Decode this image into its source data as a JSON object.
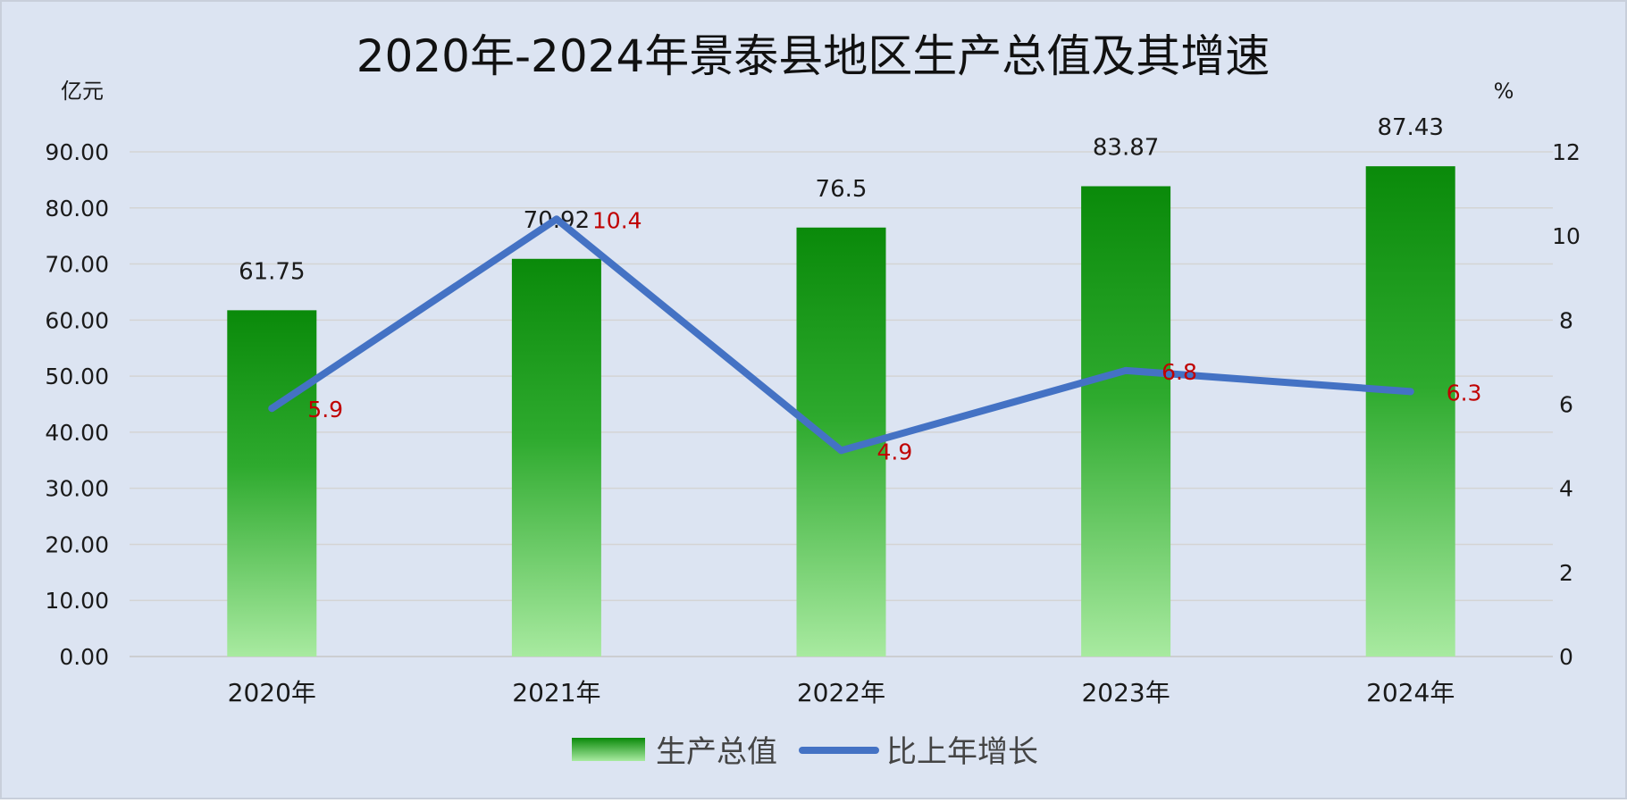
{
  "chart_data": {
    "type": "bar+line",
    "title": "2020年-2024年景泰县地区生产总值及其增速",
    "y_left_unit": "亿元",
    "y_right_unit": "%",
    "categories": [
      "2020年",
      "2021年",
      "2022年",
      "2023年",
      "2024年"
    ],
    "y_left_ticks": [
      "0.00",
      "10.00",
      "20.00",
      "30.00",
      "40.00",
      "50.00",
      "60.00",
      "70.00",
      "80.00",
      "90.00"
    ],
    "y_right_ticks": [
      "0",
      "2",
      "4",
      "6",
      "8",
      "10",
      "12"
    ],
    "ylim_left": [
      0,
      90
    ],
    "ylim_right": [
      0,
      12
    ],
    "grid": true,
    "legend_position": "bottom-center",
    "series": [
      {
        "name": "生产总值",
        "type": "bar",
        "axis": "left",
        "values": [
          61.75,
          70.92,
          76.5,
          83.87,
          87.43
        ],
        "labels": [
          "61.75",
          "70.92",
          "76.5",
          "83.87",
          "87.43"
        ]
      },
      {
        "name": "比上年增长",
        "type": "line",
        "axis": "right",
        "values": [
          5.9,
          10.4,
          4.9,
          6.8,
          6.3
        ],
        "labels": [
          "5.9",
          "10.4",
          "4.9",
          "6.8",
          "6.3"
        ]
      }
    ],
    "colors": {
      "background": "#dce4f2",
      "border": "#c8cfdb",
      "grid": "#d4d4d4",
      "bar_top": "#0a8a0a",
      "bar_bottom": "#a8eaa0",
      "line": "#4472c4",
      "line_label": "#c00000",
      "text": "#1a1a1a"
    }
  }
}
